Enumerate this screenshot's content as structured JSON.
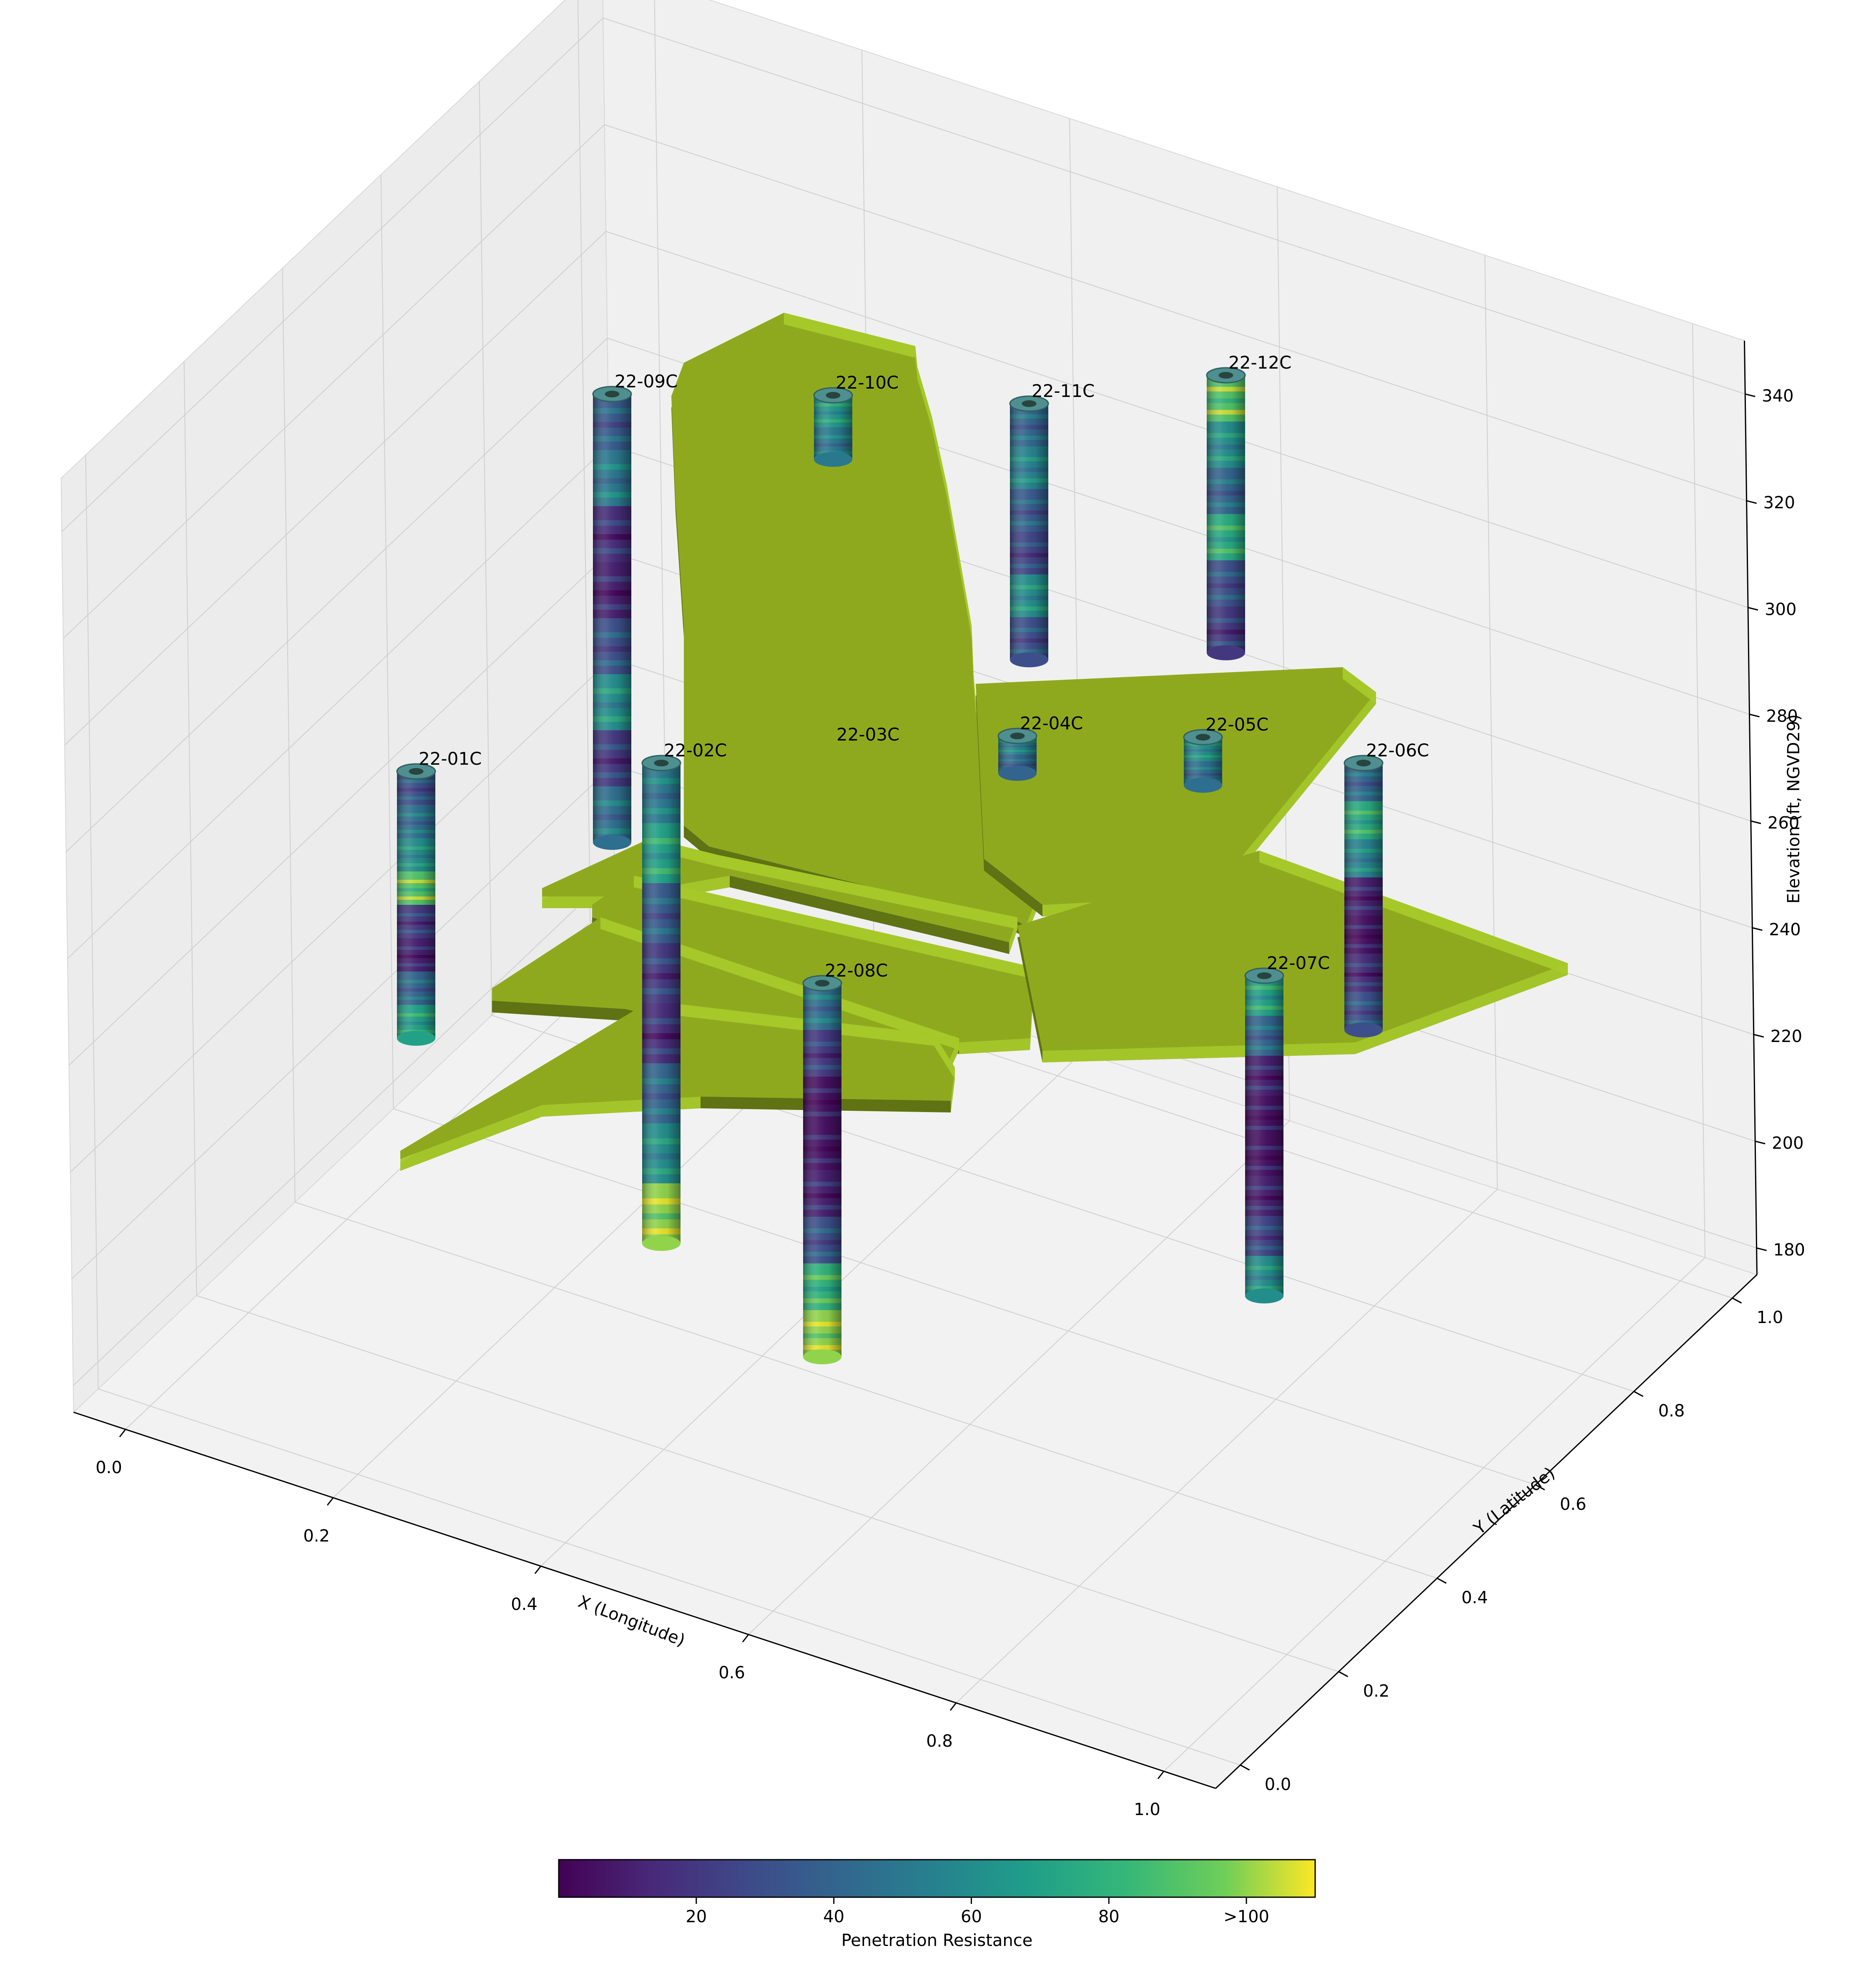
{
  "chart_data": {
    "type": "3d-scatter",
    "xlabel": "X (Longitude)",
    "ylabel": "Y (Latitude)",
    "zlabel": "Elevation (ft, NGVD29)",
    "xlim": [
      0.0,
      1.0
    ],
    "ylim": [
      0.0,
      1.0
    ],
    "zlim": [
      180,
      340
    ],
    "x_ticks": [
      "0.0",
      "0.2",
      "0.4",
      "0.6",
      "0.8",
      "1.0"
    ],
    "y_ticks": [
      "0.0",
      "0.2",
      "0.4",
      "0.6",
      "0.8",
      "1.0"
    ],
    "z_ticks": [
      "180",
      "200",
      "220",
      "240",
      "260",
      "280",
      "300",
      "320",
      "340"
    ],
    "grid": true,
    "boreholes": [
      {
        "name": "22-01C",
        "top": 272,
        "bottom": 222,
        "color_profile": [
          30,
          45,
          60,
          90,
          20,
          10,
          40,
          70
        ]
      },
      {
        "name": "22-02C",
        "top": 272,
        "bottom": 182,
        "color_profile": [
          50,
          70,
          35,
          20,
          15,
          40,
          60,
          100
        ]
      },
      {
        "name": "22-03C",
        "top": 272,
        "bottom": 272,
        "color_profile": []
      },
      {
        "name": "22-04C",
        "top": 275,
        "bottom": 268,
        "color_profile": [
          55,
          40
        ]
      },
      {
        "name": "22-05C",
        "top": 275,
        "bottom": 266,
        "color_profile": [
          60,
          45
        ]
      },
      {
        "name": "22-06C",
        "top": 272,
        "bottom": 222,
        "color_profile": [
          40,
          75,
          55,
          10,
          5,
          15,
          30
        ]
      },
      {
        "name": "22-07C",
        "top": 225,
        "bottom": 165,
        "color_profile": [
          70,
          40,
          10,
          5,
          5,
          10,
          25,
          60
        ]
      },
      {
        "name": "22-08C",
        "top": 225,
        "bottom": 155,
        "color_profile": [
          45,
          20,
          5,
          5,
          10,
          30,
          80,
          100
        ]
      },
      {
        "name": "22-09C",
        "top": 342,
        "bottom": 258,
        "color_profile": [
          35,
          50,
          15,
          10,
          30,
          60,
          20,
          45
        ]
      },
      {
        "name": "22-10C",
        "top": 340,
        "bottom": 328,
        "color_profile": [
          65,
          50
        ]
      },
      {
        "name": "22-11C",
        "top": 340,
        "bottom": 292,
        "color_profile": [
          40,
          55,
          35,
          25,
          60,
          30
        ]
      },
      {
        "name": "22-12C",
        "top": 344,
        "bottom": 292,
        "color_profile": [
          90,
          60,
          40,
          75,
          30,
          20
        ]
      }
    ],
    "surfaces": [
      {
        "name": "",
        "color": "#8fa91f"
      }
    ],
    "colorbar": {
      "label": "Penetration Resistance",
      "ticks": [
        "20",
        "40",
        "60",
        "80",
        ">100"
      ],
      "min": 0,
      "max": 110,
      "colormap": "viridis"
    }
  },
  "colors": {
    "surface_top": "#8fa91f",
    "surface_front": "#a8c92a",
    "surface_side": "#5f7214",
    "pane": "#f2f2f2",
    "grid": "#cfcfcf"
  }
}
